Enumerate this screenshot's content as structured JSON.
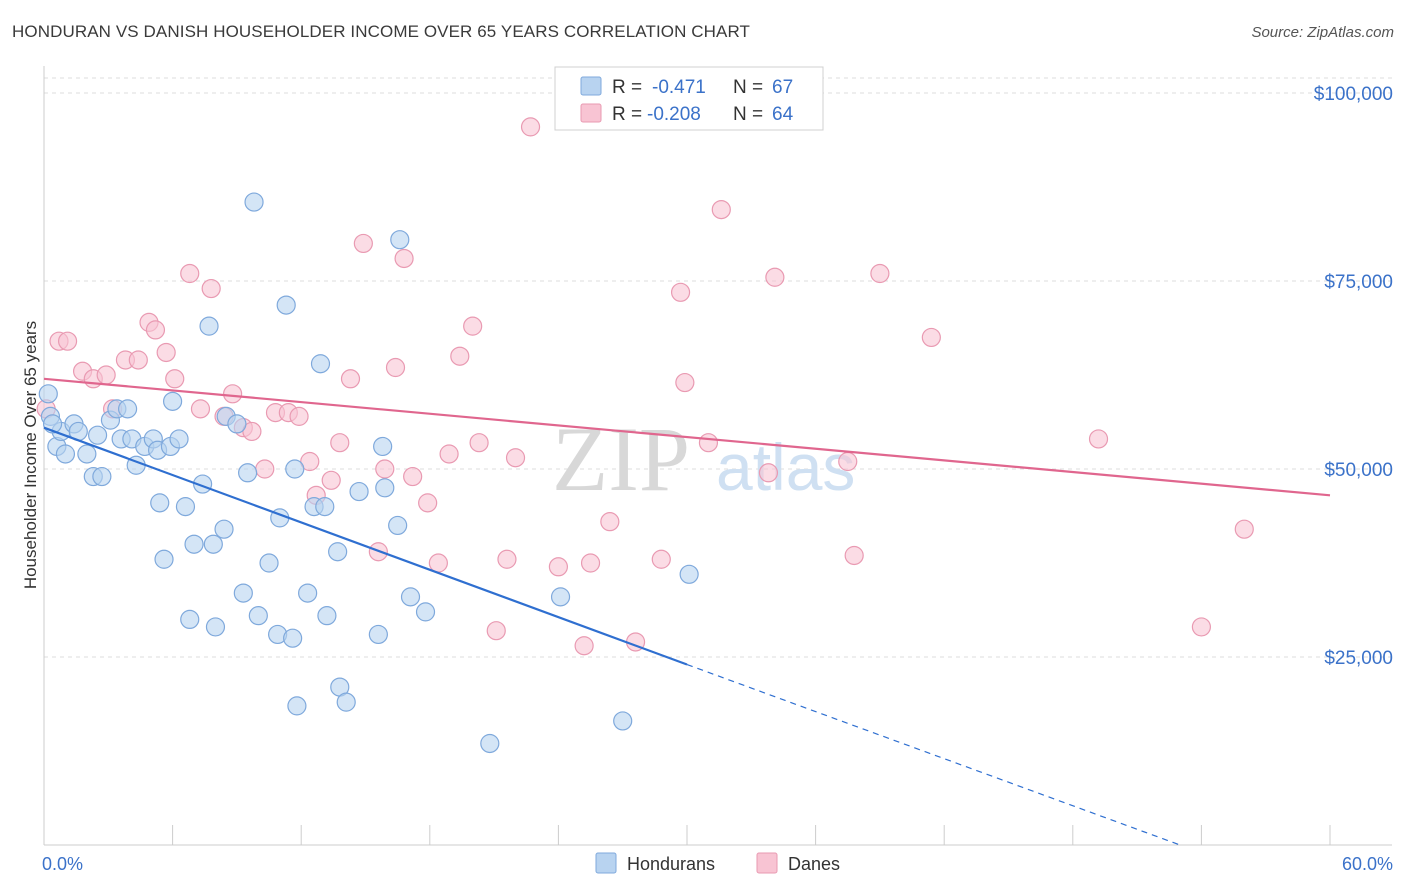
{
  "title": "HONDURAN VS DANISH HOUSEHOLDER INCOME OVER 65 YEARS CORRELATION CHART",
  "source": "Source: ZipAtlas.com",
  "watermark": {
    "zip": "ZIP",
    "atlas": "atlas"
  },
  "colors": {
    "hondurans_fill": "#b8d3f0",
    "hondurans_stroke": "#7fa9dc",
    "hondurans_line": "#2f6fd0",
    "danes_fill": "#f8c4d3",
    "danes_stroke": "#e99ab2",
    "danes_line": "#e0668e",
    "grid": "#dddddd",
    "axis_text": "#3b72c9"
  },
  "legend": {
    "hondurans": {
      "r_label": "R =",
      "r_value": "-0.471",
      "n_label": "N =",
      "n_value": "67"
    },
    "danes": {
      "r_label": "R =",
      "r_value": "-0.208",
      "n_label": "N =",
      "n_value": "64"
    }
  },
  "bottom_legend": {
    "hondurans": "Hondurans",
    "danes": "Danes"
  },
  "chart_data": {
    "type": "scatter",
    "title": "HONDURAN VS DANISH HOUSEHOLDER INCOME OVER 65 YEARS CORRELATION CHART",
    "xlabel": "",
    "ylabel": "Householder Income Over 65 years",
    "xlim": [
      0,
      60
    ],
    "ylim": [
      0,
      102000
    ],
    "x_tick_labels": [
      "0.0%",
      "60.0%"
    ],
    "y_ticks": [
      25000,
      50000,
      75000,
      100000
    ],
    "y_tick_labels": [
      "$25,000",
      "$50,000",
      "$75,000",
      "$100,000"
    ],
    "grid": "horizontal dashed",
    "legend_position": "top-center",
    "series": [
      {
        "name": "Hondurans",
        "points": [
          [
            0.2,
            60000
          ],
          [
            0.3,
            57000
          ],
          [
            0.6,
            53000
          ],
          [
            0.8,
            55000
          ],
          [
            1.0,
            52000
          ],
          [
            1.4,
            56000
          ],
          [
            1.6,
            55000
          ],
          [
            2.0,
            52000
          ],
          [
            2.3,
            49000
          ],
          [
            2.7,
            49000
          ],
          [
            3.1,
            56500
          ],
          [
            3.4,
            58000
          ],
          [
            3.6,
            54000
          ],
          [
            3.9,
            58000
          ],
          [
            4.1,
            54000
          ],
          [
            4.3,
            50500
          ],
          [
            4.7,
            53000
          ],
          [
            5.1,
            54000
          ],
          [
            5.3,
            52500
          ],
          [
            5.4,
            45500
          ],
          [
            5.6,
            38000
          ],
          [
            5.9,
            53000
          ],
          [
            6.0,
            59000
          ],
          [
            6.3,
            54000
          ],
          [
            6.6,
            45000
          ],
          [
            6.8,
            30000
          ],
          [
            7.0,
            40000
          ],
          [
            7.4,
            48000
          ],
          [
            7.7,
            69000
          ],
          [
            7.9,
            40000
          ],
          [
            8.0,
            29000
          ],
          [
            8.4,
            42000
          ],
          [
            8.5,
            57000
          ],
          [
            9.0,
            56000
          ],
          [
            9.3,
            33500
          ],
          [
            9.5,
            49500
          ],
          [
            9.8,
            85500
          ],
          [
            10.0,
            30500
          ],
          [
            10.5,
            37500
          ],
          [
            10.9,
            28000
          ],
          [
            11.0,
            43500
          ],
          [
            11.3,
            71800
          ],
          [
            11.6,
            27500
          ],
          [
            11.7,
            50000
          ],
          [
            11.8,
            18500
          ],
          [
            12.3,
            33500
          ],
          [
            12.6,
            45000
          ],
          [
            12.9,
            64000
          ],
          [
            13.1,
            45000
          ],
          [
            13.2,
            30500
          ],
          [
            13.7,
            39000
          ],
          [
            13.8,
            21000
          ],
          [
            14.1,
            19000
          ],
          [
            14.7,
            47000
          ],
          [
            15.6,
            28000
          ],
          [
            15.8,
            53000
          ],
          [
            15.9,
            47500
          ],
          [
            16.5,
            42500
          ],
          [
            16.6,
            80500
          ],
          [
            17.1,
            33000
          ],
          [
            17.8,
            31000
          ],
          [
            20.8,
            13500
          ],
          [
            24.1,
            33000
          ],
          [
            27.0,
            16500
          ],
          [
            30.1,
            36000
          ],
          [
            0.4,
            56000
          ],
          [
            2.5,
            54500
          ]
        ]
      },
      {
        "name": "Danes",
        "points": [
          [
            0.1,
            58000
          ],
          [
            0.7,
            67000
          ],
          [
            1.1,
            67000
          ],
          [
            1.8,
            63000
          ],
          [
            2.3,
            62000
          ],
          [
            2.9,
            62500
          ],
          [
            3.2,
            58000
          ],
          [
            3.8,
            64500
          ],
          [
            4.4,
            64500
          ],
          [
            4.9,
            69500
          ],
          [
            5.2,
            68500
          ],
          [
            5.7,
            65500
          ],
          [
            6.1,
            62000
          ],
          [
            6.8,
            76000
          ],
          [
            7.3,
            58000
          ],
          [
            7.8,
            74000
          ],
          [
            8.4,
            57000
          ],
          [
            8.8,
            60000
          ],
          [
            9.3,
            55500
          ],
          [
            9.7,
            55000
          ],
          [
            10.3,
            50000
          ],
          [
            10.8,
            57500
          ],
          [
            11.4,
            57500
          ],
          [
            11.9,
            57000
          ],
          [
            12.4,
            51000
          ],
          [
            12.7,
            46500
          ],
          [
            13.4,
            48500
          ],
          [
            13.8,
            53500
          ],
          [
            14.3,
            62000
          ],
          [
            14.9,
            80000
          ],
          [
            15.6,
            39000
          ],
          [
            15.9,
            50000
          ],
          [
            16.4,
            63500
          ],
          [
            16.8,
            78000
          ],
          [
            17.2,
            49000
          ],
          [
            17.9,
            45500
          ],
          [
            18.4,
            37500
          ],
          [
            18.9,
            52000
          ],
          [
            19.4,
            65000
          ],
          [
            20.0,
            69000
          ],
          [
            20.3,
            53500
          ],
          [
            21.1,
            28500
          ],
          [
            21.6,
            38000
          ],
          [
            22.0,
            51500
          ],
          [
            22.7,
            95500
          ],
          [
            24.0,
            37000
          ],
          [
            25.2,
            26500
          ],
          [
            25.5,
            37500
          ],
          [
            26.4,
            43000
          ],
          [
            27.6,
            27000
          ],
          [
            28.8,
            38000
          ],
          [
            29.7,
            73500
          ],
          [
            29.9,
            61500
          ],
          [
            31.0,
            53500
          ],
          [
            31.6,
            84500
          ],
          [
            33.8,
            49500
          ],
          [
            34.1,
            75500
          ],
          [
            37.5,
            51000
          ],
          [
            37.8,
            38500
          ],
          [
            39.0,
            76000
          ],
          [
            41.4,
            67500
          ],
          [
            49.2,
            54000
          ],
          [
            54.0,
            29000
          ],
          [
            56.0,
            42000
          ]
        ]
      }
    ],
    "trendlines": [
      {
        "name": "Hondurans",
        "x": [
          0,
          30
        ],
        "y": [
          55500,
          24000
        ],
        "extended_dashed_to": [
          60,
          -7300
        ]
      },
      {
        "name": "Danes",
        "x": [
          0,
          60
        ],
        "y": [
          62000,
          46500
        ]
      }
    ]
  }
}
